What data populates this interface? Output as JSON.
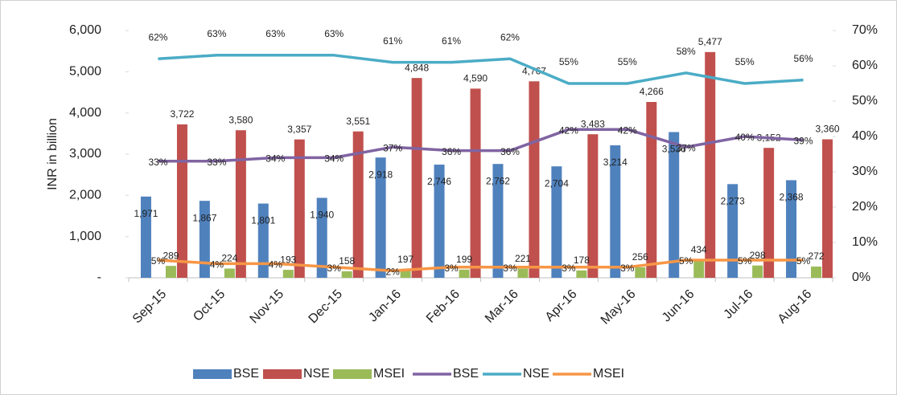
{
  "chart_data": {
    "type": "bar-line",
    "y_label": "INR in billion",
    "categories": [
      "Sep-15",
      "Oct-15",
      "Nov-15",
      "Dec-15",
      "Jan-16",
      "Feb-16",
      "Mar-16",
      "Apr-16",
      "May-16",
      "Jun-16",
      "Jul-16",
      "Aug-16"
    ],
    "ylim": [
      0,
      6000
    ],
    "yticks": [
      {
        "value": 0,
        "label": "-"
      },
      {
        "value": 1000,
        "label": "1,000"
      },
      {
        "value": 2000,
        "label": "2,000"
      },
      {
        "value": 3000,
        "label": "3,000"
      },
      {
        "value": 4000,
        "label": "4,000"
      },
      {
        "value": 5000,
        "label": "5,000"
      },
      {
        "value": 6000,
        "label": "6,000"
      }
    ],
    "y2lim": [
      0,
      70
    ],
    "y2ticks": [
      {
        "value": 0,
        "label": "0%"
      },
      {
        "value": 10,
        "label": "10%"
      },
      {
        "value": 20,
        "label": "20%"
      },
      {
        "value": 30,
        "label": "30%"
      },
      {
        "value": 40,
        "label": "40%"
      },
      {
        "value": 50,
        "label": "50%"
      },
      {
        "value": 60,
        "label": "60%"
      },
      {
        "value": 70,
        "label": "70%"
      }
    ],
    "grid": false,
    "legend": "bottom",
    "series": [
      {
        "name": "BSE",
        "kind": "bar",
        "color": "#4f81bd",
        "values": [
          1971,
          1867,
          1801,
          1940,
          2918,
          2746,
          2762,
          2704,
          3214,
          3536,
          2273,
          2368
        ],
        "value_labels": [
          "1,971",
          "1,867",
          "1,801",
          "1,940",
          "2,918",
          "2,746",
          "2,762",
          "2,704",
          "3,214",
          "3,536",
          "2,273",
          "2,368"
        ]
      },
      {
        "name": "NSE",
        "kind": "bar",
        "color": "#c0504d",
        "values": [
          3722,
          3580,
          3357,
          3551,
          4848,
          4590,
          4767,
          3483,
          4266,
          5477,
          3152,
          3360
        ],
        "value_labels": [
          "3,722",
          "3,580",
          "3,357",
          "3,551",
          "4,848",
          "4,590",
          "4,767",
          "3,483",
          "4,266",
          "5,477",
          "3,152",
          "3,360"
        ]
      },
      {
        "name": "MSEI",
        "kind": "bar",
        "color": "#9bbb59",
        "values": [
          289,
          224,
          193,
          158,
          197,
          199,
          221,
          178,
          256,
          434,
          298,
          272
        ]
      },
      {
        "name": "BSE",
        "kind": "line",
        "axis": "y2",
        "color": "#8064a2",
        "values": [
          33,
          33,
          34,
          34,
          37,
          36,
          36,
          42,
          42,
          37,
          40,
          39
        ],
        "value_labels": [
          "33%",
          "33%",
          "34%",
          "34%",
          "37%",
          "36%",
          "36%",
          "42%",
          "42%",
          "37%",
          "40%",
          "39%"
        ]
      },
      {
        "name": "NSE",
        "kind": "line",
        "axis": "y2",
        "color": "#4bacc6",
        "values": [
          62,
          63,
          63,
          63,
          61,
          61,
          62,
          55,
          55,
          58,
          55,
          56
        ],
        "value_labels": [
          "62%",
          "63%",
          "63%",
          "63%",
          "61%",
          "61%",
          "62%",
          "55%",
          "55%",
          "58%",
          "55%",
          "56%"
        ]
      },
      {
        "name": "MSEI",
        "kind": "line",
        "axis": "y2",
        "color": "#f79646",
        "values": [
          5,
          4,
          4,
          3,
          2,
          3,
          3,
          3,
          3,
          5,
          5,
          5
        ],
        "value_labels": [
          "5%",
          "4%",
          "4%",
          "3%",
          "2%",
          "3%",
          "3%",
          "3%",
          "3%",
          "5%",
          "5%",
          "5%"
        ]
      }
    ]
  }
}
